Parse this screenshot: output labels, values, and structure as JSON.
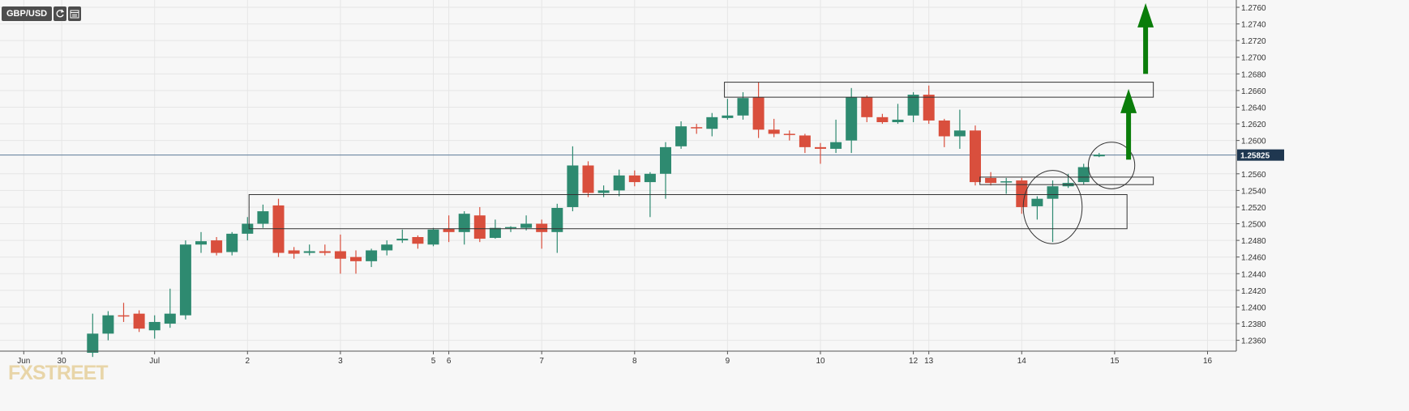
{
  "toolbar": {
    "symbol": "GBP/USD",
    "refresh_icon": "refresh-icon",
    "calendar_icon": "calendar-icon"
  },
  "watermark": "FXSTREET",
  "colors": {
    "bull": "#2e8a70",
    "bear": "#d94f3d",
    "arrow": "#0a7d0a",
    "price_tag": "#1f3750",
    "price_line": "#5b7a99",
    "grid": "#e6e6e6",
    "box": "#333333"
  },
  "chart_data": {
    "type": "candlestick",
    "ylim": [
      1.235,
      1.2765
    ],
    "y_ticks": [
      "1.2760",
      "1.2740",
      "1.2720",
      "1.2700",
      "1.2680",
      "1.2660",
      "1.2640",
      "1.2620",
      "1.2600",
      "1.2560",
      "1.2540",
      "1.2520",
      "1.2500",
      "1.2480",
      "1.2460",
      "1.2440",
      "1.2420",
      "1.2400",
      "1.2380",
      "1.2360"
    ],
    "x_ticks": [
      {
        "label": "Jun",
        "t": -1.45
      },
      {
        "label": "30",
        "t": 1
      },
      {
        "label": "Jul",
        "t": 7
      },
      {
        "label": "2",
        "t": 13
      },
      {
        "label": "3",
        "t": 19
      },
      {
        "label": "5",
        "t": 25
      },
      {
        "label": "6",
        "t": 26
      },
      {
        "label": "7",
        "t": 32
      },
      {
        "label": "8",
        "t": 38
      },
      {
        "label": "9",
        "t": 44
      },
      {
        "label": "10",
        "t": 50
      },
      {
        "label": "12",
        "t": 56
      },
      {
        "label": "13",
        "t": 57
      },
      {
        "label": "14",
        "t": 63
      },
      {
        "label": "15",
        "t": 69
      },
      {
        "label": "16",
        "t": 75
      }
    ],
    "current_price": "1.25825",
    "current_price_value": 1.25825,
    "candles": [
      [
        3,
        1.2345,
        1.2368,
        1.234,
        1.2392
      ],
      [
        4,
        1.2368,
        1.239,
        1.236,
        1.2395
      ],
      [
        5,
        1.239,
        1.2389,
        1.2382,
        1.2405
      ],
      [
        6,
        1.2392,
        1.2374,
        1.237,
        1.2396
      ],
      [
        7,
        1.2372,
        1.2382,
        1.2362,
        1.239
      ],
      [
        8,
        1.238,
        1.2392,
        1.2375,
        1.2422
      ],
      [
        9,
        1.239,
        1.2475,
        1.2385,
        1.248
      ],
      [
        10,
        1.2475,
        1.2479,
        1.2465,
        1.249
      ],
      [
        11,
        1.248,
        1.2465,
        1.2462,
        1.2484
      ],
      [
        12,
        1.2466,
        1.2488,
        1.2462,
        1.249
      ],
      [
        13,
        1.2488,
        1.25,
        1.248,
        1.2508
      ],
      [
        14,
        1.25,
        1.2515,
        1.2495,
        1.2523
      ],
      [
        15,
        1.2522,
        1.2465,
        1.246,
        1.253
      ],
      [
        16,
        1.2468,
        1.2464,
        1.2458,
        1.2472
      ],
      [
        17,
        1.2465,
        1.2467,
        1.2462,
        1.2475
      ],
      [
        18,
        1.2467,
        1.2465,
        1.2462,
        1.2475
      ],
      [
        19,
        1.2467,
        1.2458,
        1.244,
        1.2487
      ],
      [
        20,
        1.246,
        1.2455,
        1.244,
        1.2468
      ],
      [
        21,
        1.2455,
        1.2468,
        1.2448,
        1.247
      ],
      [
        22,
        1.2468,
        1.2475,
        1.2462,
        1.248
      ],
      [
        23,
        1.248,
        1.2482,
        1.2477,
        1.2493
      ],
      [
        24,
        1.2484,
        1.2476,
        1.247,
        1.2486
      ],
      [
        25,
        1.2475,
        1.2493,
        1.2473,
        1.2495
      ],
      [
        26,
        1.2494,
        1.249,
        1.2478,
        1.251
      ],
      [
        27,
        1.249,
        1.2512,
        1.2475,
        1.2515
      ],
      [
        28,
        1.251,
        1.2482,
        1.2478,
        1.252
      ],
      [
        29,
        1.2483,
        1.2495,
        1.2482,
        1.2505
      ],
      [
        30,
        1.2495,
        1.2496,
        1.249,
        1.2497
      ],
      [
        31,
        1.2495,
        1.25,
        1.2492,
        1.251
      ],
      [
        32,
        1.25,
        1.249,
        1.247,
        1.2505
      ],
      [
        33,
        1.249,
        1.2519,
        1.2465,
        1.2524
      ],
      [
        34,
        1.252,
        1.257,
        1.2515,
        1.2593
      ],
      [
        35,
        1.257,
        1.2537,
        1.2532,
        1.2575
      ],
      [
        36,
        1.2537,
        1.254,
        1.2532,
        1.2546
      ],
      [
        37,
        1.254,
        1.2558,
        1.2533,
        1.2565
      ],
      [
        38,
        1.2558,
        1.255,
        1.2545,
        1.2564
      ],
      [
        39,
        1.255,
        1.256,
        1.2508,
        1.2562
      ],
      [
        40,
        1.256,
        1.2592,
        1.253,
        1.2598
      ],
      [
        41,
        1.2593,
        1.2617,
        1.259,
        1.2623
      ],
      [
        42,
        1.2616,
        1.2615,
        1.2608,
        1.262
      ],
      [
        43,
        1.2614,
        1.2628,
        1.2605,
        1.2633
      ],
      [
        44,
        1.2627,
        1.263,
        1.2625,
        1.265
      ],
      [
        45,
        1.263,
        1.2651,
        1.2625,
        1.2658
      ],
      [
        46,
        1.2652,
        1.2613,
        1.2603,
        1.267
      ],
      [
        47,
        1.2613,
        1.2608,
        1.2604,
        1.2626
      ],
      [
        48,
        1.2608,
        1.2607,
        1.26,
        1.2612
      ],
      [
        49,
        1.2606,
        1.2592,
        1.2585,
        1.2608
      ],
      [
        50,
        1.2592,
        1.259,
        1.2572,
        1.2597
      ],
      [
        51,
        1.259,
        1.2598,
        1.2585,
        1.2625
      ],
      [
        52,
        1.26,
        1.2652,
        1.2585,
        1.2663
      ],
      [
        53,
        1.2652,
        1.2628,
        1.2622,
        1.2654
      ],
      [
        54,
        1.2628,
        1.2622,
        1.262,
        1.2632
      ],
      [
        55,
        1.2622,
        1.2625,
        1.262,
        1.2644
      ],
      [
        56,
        1.263,
        1.2655,
        1.2622,
        1.2658
      ],
      [
        57,
        1.2655,
        1.2624,
        1.262,
        1.2666
      ],
      [
        58,
        1.2624,
        1.2605,
        1.2592,
        1.2626
      ],
      [
        59,
        1.2605,
        1.2612,
        1.259,
        1.2637
      ],
      [
        60,
        1.2612,
        1.255,
        1.2546,
        1.2618
      ],
      [
        61,
        1.2555,
        1.2549,
        1.2546,
        1.2562
      ],
      [
        62,
        1.255,
        1.2551,
        1.2536,
        1.2555
      ],
      [
        63,
        1.2552,
        1.252,
        1.2512,
        1.2555
      ],
      [
        64,
        1.2521,
        1.253,
        1.2505,
        1.2533
      ],
      [
        65,
        1.253,
        1.2545,
        1.2478,
        1.2552
      ],
      [
        66,
        1.2545,
        1.2549,
        1.2543,
        1.256
      ],
      [
        67,
        1.255,
        1.2568,
        1.2547,
        1.2572
      ],
      [
        68,
        1.2581,
        1.2583,
        1.258,
        1.2585
      ]
    ],
    "annotations": {
      "boxes": [
        {
          "t0": 43.8,
          "t1": 71.5,
          "y_top": 1.267,
          "y_bot": 1.2652
        },
        {
          "t0": 13.1,
          "t1": 69.8,
          "y_top": 1.2535,
          "y_bot": 1.2494
        },
        {
          "t0": 60.3,
          "t1": 71.5,
          "y_top": 1.2556,
          "y_bot": 1.2547
        }
      ],
      "ellipses": [
        {
          "t": 65.0,
          "y": 1.252,
          "rt": 1.9,
          "ry": 0.0044
        },
        {
          "t": 68.8,
          "y": 1.257,
          "rt": 1.5,
          "ry": 0.0028
        }
      ],
      "arrows": [
        {
          "t": 69.9,
          "y_from": 1.2577,
          "y_to": 1.2662
        },
        {
          "t": 71.0,
          "y_from": 1.268,
          "y_to": 1.2765
        }
      ]
    }
  }
}
